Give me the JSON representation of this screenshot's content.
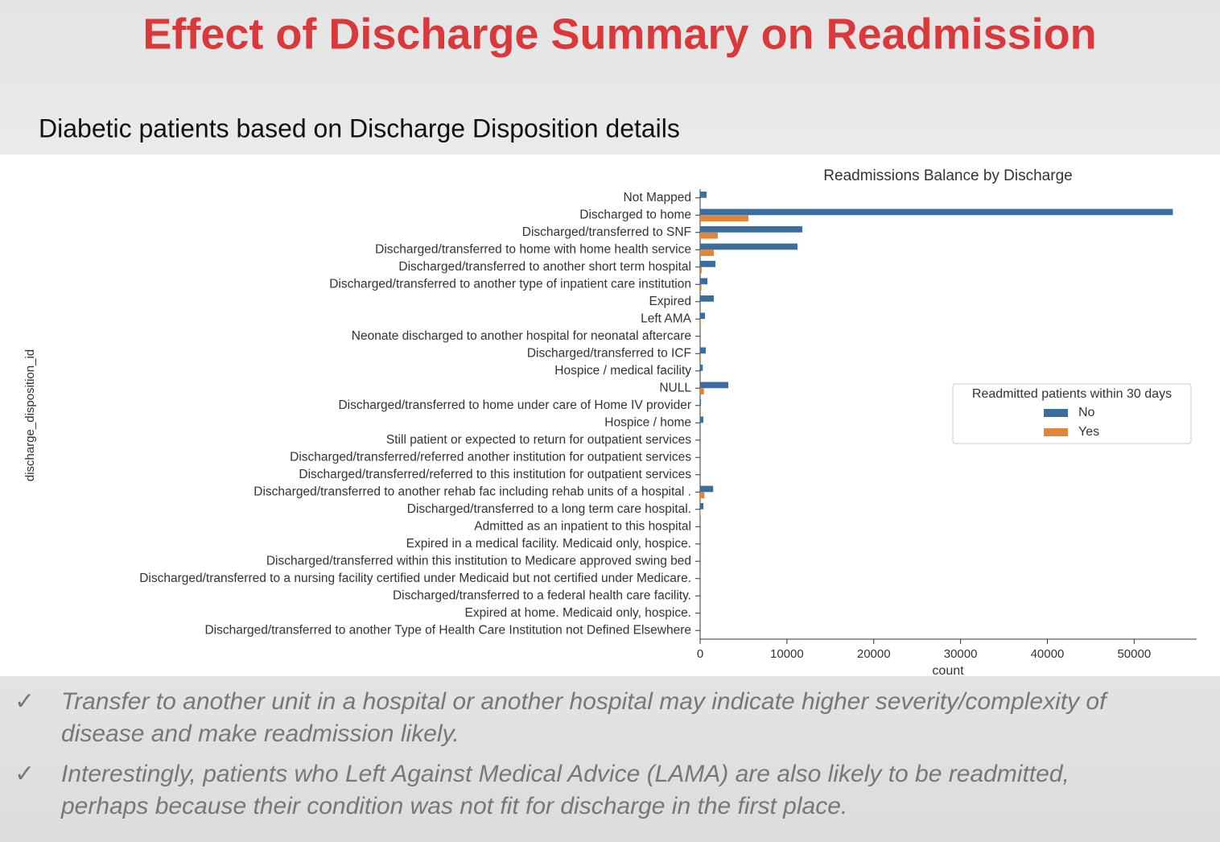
{
  "slide": {
    "title": "Effect of Discharge Summary on Readmission",
    "subtitle": "Diabetic patients based on Discharge Disposition details",
    "bullets": [
      {
        "marker": "✓",
        "text": "Transfer to another unit in a hospital or another hospital may indicate higher severity/complexity of disease and make readmission likely."
      },
      {
        "marker": "✓",
        "text": "Interestingly, patients who Left Against Medical Advice (LAMA) are also likely to be readmitted, perhaps because their condition was not fit for discharge in the first place."
      }
    ]
  },
  "chart_data": {
    "type": "hbar",
    "title": "Readmissions Balance by Discharge",
    "x_label": "count",
    "y_label": "discharge_disposition_id",
    "categories": [
      "Not Mapped",
      "Discharged to home",
      "Discharged/transferred to SNF",
      "Discharged/transferred to home with home health service",
      "Discharged/transferred to another short term hospital",
      "Discharged/transferred to another type of inpatient care institution",
      "Expired",
      "Left AMA",
      "Neonate discharged to another hospital for neonatal aftercare",
      "Discharged/transferred to ICF",
      "Hospice / medical facility",
      "NULL",
      "Discharged/transferred to home under care of Home IV provider",
      "Hospice / home",
      "Still patient or expected to return for outpatient services",
      "Discharged/transferred/referred another institution for outpatient services",
      "Discharged/transferred/referred to this institution for outpatient services",
      "Discharged/transferred to another rehab fac including rehab units of a hospital .",
      "Discharged/transferred to a long term care hospital.",
      "Admitted as an inpatient to this hospital",
      "Expired in a medical facility. Medicaid only, hospice.",
      "Discharged/transferred within this institution to Medicare approved swing bed",
      "Discharged/transferred to a nursing facility certified under Medicaid but not certified under Medicare.",
      "Discharged/transferred to a federal health care facility.",
      "Expired at home. Medicaid only, hospice.",
      "Discharged/transferred to another Type of Health Care Institution not Defined Elsewhere"
    ],
    "series": [
      {
        "name": "No",
        "color": "#3a6e9f",
        "values": [
          740,
          54450,
          11780,
          11220,
          1760,
          840,
          1580,
          560,
          0,
          650,
          300,
          3250,
          100,
          370,
          60,
          10,
          10,
          1500,
          380,
          20,
          8,
          60,
          40,
          0,
          0,
          0
        ]
      },
      {
        "name": "Yes",
        "color": "#e1853a",
        "values": [
          0,
          5560,
          2040,
          1580,
          190,
          150,
          0,
          80,
          0,
          80,
          0,
          440,
          10,
          0,
          0,
          0,
          0,
          490,
          40,
          0,
          0,
          0,
          0,
          0,
          0,
          0
        ]
      }
    ],
    "legend_title": "Readmitted patients within 30 days",
    "xlim": [
      0,
      57200
    ],
    "xticks": [
      0,
      10000,
      20000,
      30000,
      40000,
      50000
    ]
  }
}
